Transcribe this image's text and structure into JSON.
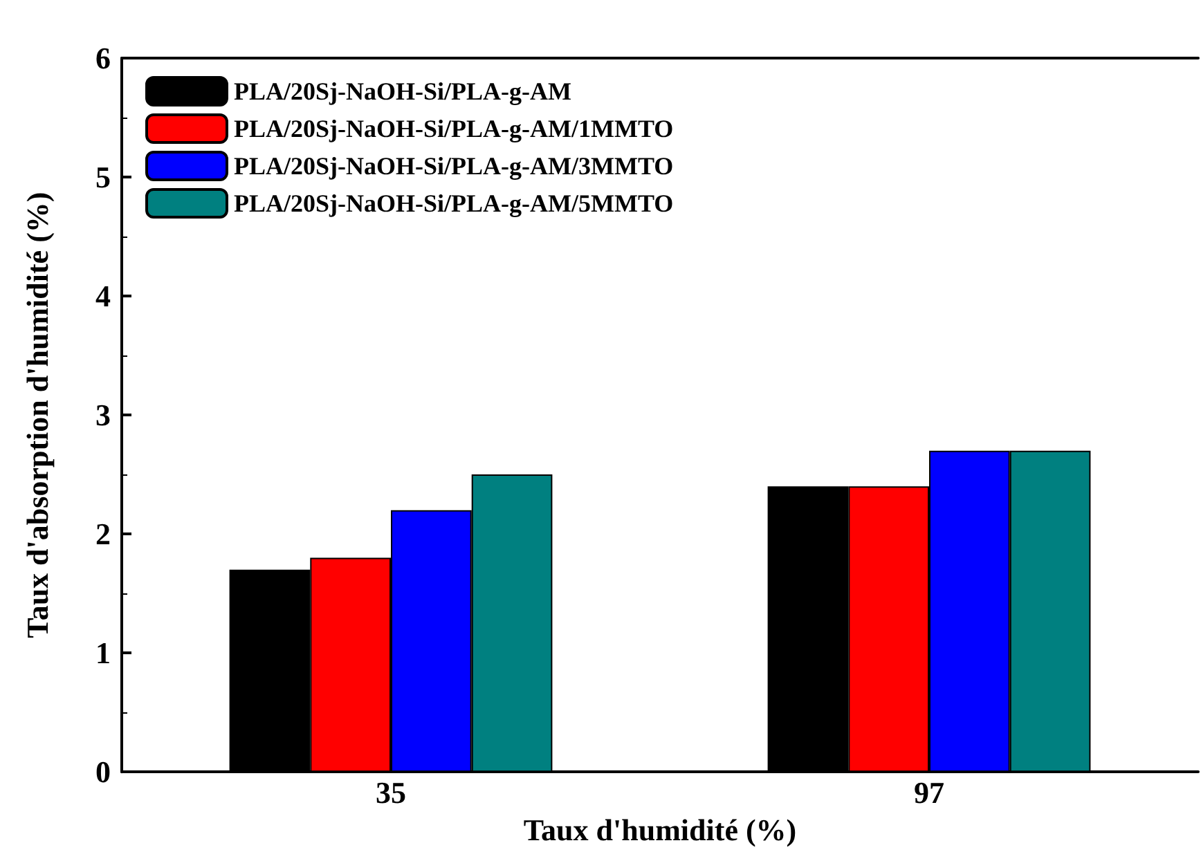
{
  "chart_data": {
    "type": "bar",
    "xlabel": "Taux d'humidité (%)",
    "ylabel": "Taux d'absorption d'humidité (%)",
    "categories": [
      "35",
      "97"
    ],
    "series": [
      {
        "name": "PLA/20Sj-NaOH-Si/PLA-g-AM",
        "color": "#000000",
        "values": [
          1.7,
          2.4
        ]
      },
      {
        "name": "PLA/20Sj-NaOH-Si/PLA-g-AM/1MMTO",
        "color": "#ff0000",
        "values": [
          1.8,
          2.4
        ]
      },
      {
        "name": "PLA/20Sj-NaOH-Si/PLA-g-AM/3MMTO",
        "color": "#0000ff",
        "values": [
          2.2,
          2.7
        ]
      },
      {
        "name": "PLA/20Sj-NaOH-Si/PLA-g-AM/5MMTO",
        "color": "#008080",
        "values": [
          2.5,
          2.7
        ]
      }
    ],
    "ylim": [
      0,
      6
    ],
    "yticks": [
      0,
      1,
      2,
      3,
      4,
      5,
      6
    ],
    "grid": false,
    "legend": "top left"
  }
}
